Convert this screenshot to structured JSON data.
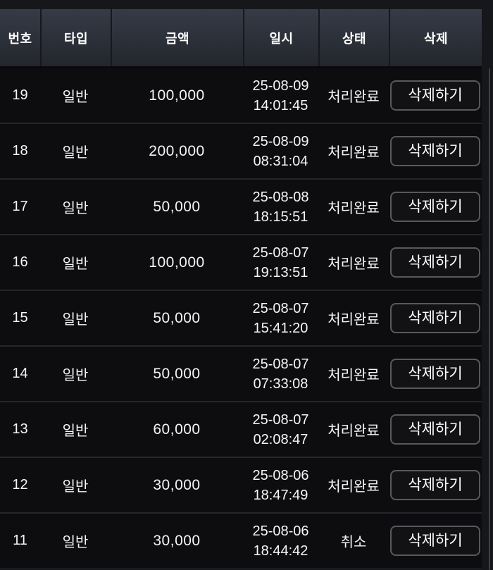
{
  "colors": {
    "page_background": "#16171b",
    "header_gradient_top": "#363b46",
    "header_gradient_bottom": "#23262d",
    "row_background": "#0d0d10",
    "row_separator": "#25262c",
    "text": "#f4f5f7",
    "button_border": "#58595d"
  },
  "table": {
    "columns": [
      {
        "key": "no",
        "label": "번호"
      },
      {
        "key": "type",
        "label": "타입"
      },
      {
        "key": "amount",
        "label": "금액"
      },
      {
        "key": "datetime",
        "label": "일시"
      },
      {
        "key": "status",
        "label": "상태"
      },
      {
        "key": "delete",
        "label": "삭제"
      }
    ],
    "delete_button_label": "삭제하기",
    "rows": [
      {
        "no": "19",
        "type": "일반",
        "amount": "100,000",
        "date": "25-08-09",
        "time": "14:01:45",
        "status": "처리완료"
      },
      {
        "no": "18",
        "type": "일반",
        "amount": "200,000",
        "date": "25-08-09",
        "time": "08:31:04",
        "status": "처리완료"
      },
      {
        "no": "17",
        "type": "일반",
        "amount": "50,000",
        "date": "25-08-08",
        "time": "18:15:51",
        "status": "처리완료"
      },
      {
        "no": "16",
        "type": "일반",
        "amount": "100,000",
        "date": "25-08-07",
        "time": "19:13:51",
        "status": "처리완료"
      },
      {
        "no": "15",
        "type": "일반",
        "amount": "50,000",
        "date": "25-08-07",
        "time": "15:41:20",
        "status": "처리완료"
      },
      {
        "no": "14",
        "type": "일반",
        "amount": "50,000",
        "date": "25-08-07",
        "time": "07:33:08",
        "status": "처리완료"
      },
      {
        "no": "13",
        "type": "일반",
        "amount": "60,000",
        "date": "25-08-07",
        "time": "02:08:47",
        "status": "처리완료"
      },
      {
        "no": "12",
        "type": "일반",
        "amount": "30,000",
        "date": "25-08-06",
        "time": "18:47:49",
        "status": "처리완료"
      },
      {
        "no": "11",
        "type": "일반",
        "amount": "30,000",
        "date": "25-08-06",
        "time": "18:44:42",
        "status": "취소"
      }
    ]
  }
}
